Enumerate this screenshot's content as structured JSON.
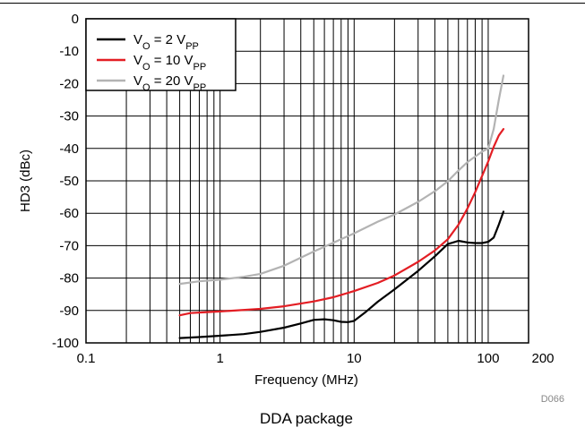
{
  "chart_data": {
    "type": "line",
    "xlabel": "Frequency (MHz)",
    "ylabel": "HD3 (dBc)",
    "x_scale": "log",
    "xlim": [
      0.1,
      200
    ],
    "ylim": [
      -100,
      0
    ],
    "grid": true,
    "legend_position": "top-left",
    "x_tick_labels": [
      "0.1",
      "1",
      "10",
      "100",
      "200"
    ],
    "y_tick_labels": [
      "0",
      "-10",
      "-20",
      "-30",
      "-40",
      "-50",
      "-60",
      "-70",
      "-80",
      "-90",
      "-100"
    ],
    "y_ticks": [
      0,
      -10,
      -20,
      -30,
      -40,
      -50,
      -60,
      -70,
      -80,
      -90,
      -100
    ],
    "series": [
      {
        "name": "VO = 2 VPP",
        "label_parts": [
          "V",
          "O",
          " = 2 V",
          "PP"
        ],
        "color": "#000000",
        "x": [
          0.5,
          0.7,
          1,
          1.5,
          2,
          3,
          4,
          5,
          6,
          7,
          8,
          9,
          10,
          12,
          15,
          20,
          30,
          40,
          50,
          60,
          70,
          80,
          90,
          100,
          110,
          120,
          130
        ],
        "y": [
          -98.5,
          -98.2,
          -97.8,
          -97.3,
          -96.6,
          -95.3,
          -94,
          -92.9,
          -92.7,
          -93,
          -93.5,
          -93.6,
          -93.2,
          -90.7,
          -87.3,
          -83.5,
          -77.8,
          -73.3,
          -69.5,
          -68.5,
          -69,
          -69.2,
          -69.2,
          -68.8,
          -67.5,
          -63.5,
          -59.5
        ]
      },
      {
        "name": "VO = 10 VPP",
        "label_parts": [
          "V",
          "O",
          " = 10 V",
          "PP"
        ],
        "color": "#e31e24",
        "x": [
          0.5,
          0.6,
          0.8,
          1,
          2,
          3,
          5,
          7,
          10,
          15,
          20,
          30,
          40,
          50,
          60,
          70,
          80,
          90,
          100,
          110,
          120,
          130
        ],
        "y": [
          -91.5,
          -90.8,
          -90.5,
          -90.3,
          -89.5,
          -88.7,
          -87.2,
          -85.9,
          -84,
          -81.5,
          -79.2,
          -75,
          -71.5,
          -68,
          -63.5,
          -58.5,
          -53.5,
          -48.5,
          -44,
          -39.5,
          -36,
          -34
        ]
      },
      {
        "name": "VO = 20 VPP",
        "label_parts": [
          "V",
          "O",
          " = 20 V",
          "PP"
        ],
        "color": "#b3b3b3",
        "x": [
          0.5,
          0.7,
          1,
          1.5,
          2,
          3,
          5,
          7,
          10,
          15,
          20,
          30,
          40,
          50,
          60,
          70,
          80,
          90,
          100,
          110,
          120,
          130
        ],
        "y": [
          -81.8,
          -81,
          -80.5,
          -79.6,
          -78.7,
          -76.2,
          -71.8,
          -69.1,
          -66.2,
          -62.6,
          -60.4,
          -56.5,
          -53.2,
          -50.1,
          -46.8,
          -44.2,
          -42.5,
          -41,
          -40,
          -34,
          -25,
          -17.5
        ]
      }
    ]
  },
  "figure_id": "D066",
  "caption": "DDA package"
}
